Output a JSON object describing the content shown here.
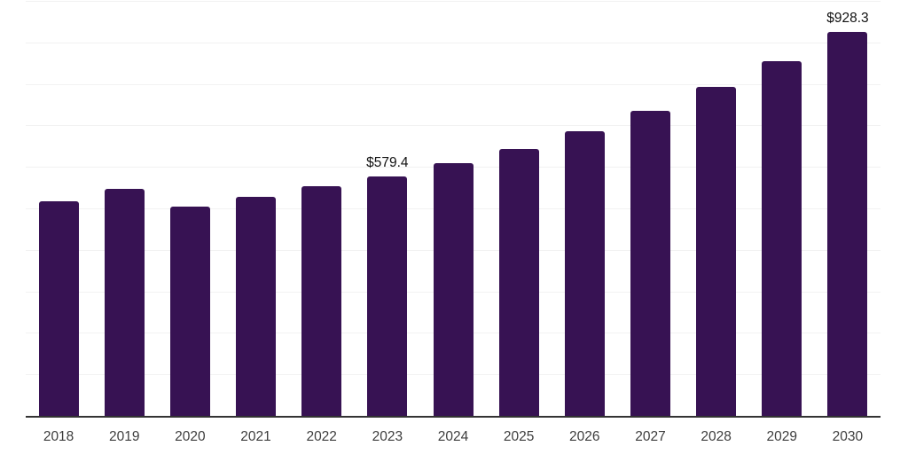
{
  "chart_data": {
    "type": "bar",
    "title": "",
    "xlabel": "",
    "ylabel": "",
    "categories": [
      "2018",
      "2019",
      "2020",
      "2021",
      "2022",
      "2023",
      "2024",
      "2025",
      "2026",
      "2027",
      "2028",
      "2029",
      "2030"
    ],
    "values": [
      520.2,
      549.8,
      507.4,
      530.8,
      556.0,
      579.4,
      611.8,
      645.3,
      687.4,
      736.3,
      795.2,
      857.8,
      928.3
    ],
    "data_labels": [
      "",
      "",
      "",
      "",
      "",
      "$579.4",
      "",
      "",
      "",
      "",
      "",
      "",
      "$928.3"
    ],
    "ylim": [
      0,
      1000
    ],
    "gridline_step": 100,
    "grid": "horizontal",
    "legend": "none",
    "bar_color": "#371253",
    "gridline_color": "#f2f2f2",
    "axis_line_color": "#333333",
    "tick_label_color": "#3d3d3d",
    "data_label_color": "#111111"
  }
}
